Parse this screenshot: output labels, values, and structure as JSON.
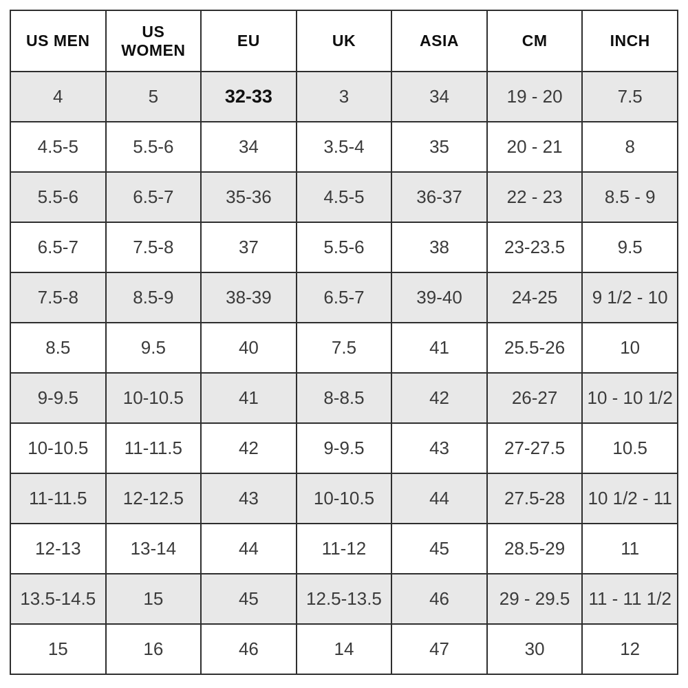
{
  "chart_data": {
    "type": "table",
    "columns": [
      "US MEN",
      "US WOMEN",
      "EU",
      "UK",
      "ASIA",
      "CM",
      "INCH"
    ],
    "rows": [
      [
        "4",
        "5",
        "32-33",
        "3",
        "34",
        "19 - 20",
        "7.5"
      ],
      [
        "4.5-5",
        "5.5-6",
        "34",
        "3.5-4",
        "35",
        "20 - 21",
        "8"
      ],
      [
        "5.5-6",
        "6.5-7",
        "35-36",
        "4.5-5",
        "36-37",
        "22 - 23",
        "8.5 - 9"
      ],
      [
        "6.5-7",
        "7.5-8",
        "37",
        "5.5-6",
        "38",
        "23-23.5",
        "9.5"
      ],
      [
        "7.5-8",
        "8.5-9",
        "38-39",
        "6.5-7",
        "39-40",
        "24-25",
        "9 1/2 - 10"
      ],
      [
        "8.5",
        "9.5",
        "40",
        "7.5",
        "41",
        "25.5-26",
        "10"
      ],
      [
        "9-9.5",
        "10-10.5",
        "41",
        "8-8.5",
        "42",
        "26-27",
        "10 - 10 1/2"
      ],
      [
        "10-10.5",
        "11-11.5",
        "42",
        "9-9.5",
        "43",
        "27-27.5",
        "10.5"
      ],
      [
        "11-11.5",
        "12-12.5",
        "43",
        "10-10.5",
        "44",
        "27.5-28",
        "10 1/2 - 11"
      ],
      [
        "12-13",
        "13-14",
        "44",
        "11-12",
        "45",
        "28.5-29",
        "11"
      ],
      [
        "13.5-14.5",
        "15",
        "45",
        "12.5-13.5",
        "46",
        "29 - 29.5",
        "11 - 11 1/2"
      ],
      [
        "15",
        "16",
        "46",
        "14",
        "47",
        "30",
        "12"
      ]
    ],
    "layout": {
      "zebra_shaded_row_indices": [
        0,
        2,
        4,
        6,
        8,
        10
      ],
      "highlight_cell": {
        "row": 0,
        "col": 2
      }
    },
    "colors": {
      "row_shade": "#e8e8e8",
      "border": "#2e2e2e",
      "header_text": "#0e0e0e",
      "cell_text": "#3b3b3b",
      "highlight_text": "#111111",
      "background": "#ffffff"
    }
  }
}
